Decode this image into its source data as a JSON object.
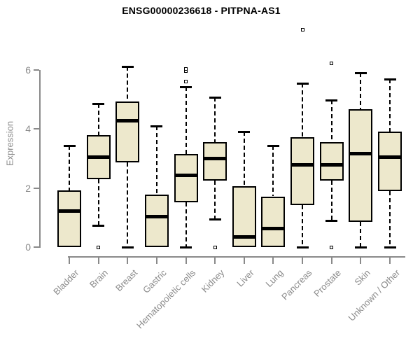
{
  "title": "ENSG00000236618 - PITPNA-AS1",
  "colors": {
    "box_fill": "#EDE8CC",
    "box_border": "#000000",
    "median": "#000000",
    "whisker": "#000000",
    "outlier_fill": "#FFFFFF",
    "axis": "#8A8A8A",
    "axis_text": "#8A8A8A",
    "title_text": "#000000",
    "background": "#FFFFFF"
  },
  "chart_data": {
    "type": "boxplot",
    "title": "ENSG00000236618 - PITPNA-AS1",
    "xlabel": "",
    "ylabel": "Expression",
    "ylim": [
      0,
      6
    ],
    "yticks": [
      0,
      2,
      4,
      6
    ],
    "grid": false,
    "legend": "none",
    "categories": [
      "Bladder",
      "Brain",
      "Breast",
      "Gastric",
      "Hematopoietic cells",
      "Kidney",
      "Liver",
      "Lung",
      "Pancreas",
      "Prostate",
      "Skin",
      "Unknown / Other"
    ],
    "series": [
      {
        "name": "Bladder",
        "whisker_low": 0,
        "q1": 0,
        "median": 1.22,
        "q3": 1.91,
        "whisker_high": 3.43,
        "outliers": []
      },
      {
        "name": "Brain",
        "whisker_low": 0.73,
        "q1": 2.3,
        "median": 3.05,
        "q3": 3.8,
        "whisker_high": 4.87,
        "outliers": [
          0
        ]
      },
      {
        "name": "Breast",
        "whisker_low": 0.01,
        "q1": 2.86,
        "median": 4.29,
        "q3": 4.94,
        "whisker_high": 6.13,
        "outliers": []
      },
      {
        "name": "Gastric",
        "whisker_low": 0,
        "q1": 0,
        "median": 1.03,
        "q3": 1.77,
        "whisker_high": 4.1,
        "outliers": []
      },
      {
        "name": "Hematopoietic cells",
        "whisker_low": 0.01,
        "q1": 1.51,
        "median": 2.43,
        "q3": 3.16,
        "whisker_high": 5.44,
        "outliers": [
          5.6,
          5.96,
          6.04
        ]
      },
      {
        "name": "Kidney",
        "whisker_low": 0.94,
        "q1": 2.26,
        "median": 3.01,
        "q3": 3.57,
        "whisker_high": 5.08,
        "outliers": [
          0
        ]
      },
      {
        "name": "Liver",
        "whisker_low": 0,
        "q1": 0,
        "median": 0.35,
        "q3": 2.06,
        "whisker_high": 3.91,
        "outliers": []
      },
      {
        "name": "Lung",
        "whisker_low": 0,
        "q1": 0,
        "median": 0.62,
        "q3": 1.72,
        "whisker_high": 3.43,
        "outliers": []
      },
      {
        "name": "Pancreas",
        "whisker_low": 0.01,
        "q1": 1.43,
        "median": 2.78,
        "q3": 3.72,
        "whisker_high": 5.54,
        "outliers": [
          7.36
        ]
      },
      {
        "name": "Prostate",
        "whisker_low": 0.9,
        "q1": 2.25,
        "median": 2.78,
        "q3": 3.55,
        "whisker_high": 4.99,
        "outliers": [
          6.22,
          0
        ]
      },
      {
        "name": "Skin",
        "whisker_low": 0.01,
        "q1": 0.85,
        "median": 3.17,
        "q3": 4.67,
        "whisker_high": 5.91,
        "outliers": []
      },
      {
        "name": "Unknown / Other",
        "whisker_low": 0.01,
        "q1": 1.89,
        "median": 3.06,
        "q3": 3.91,
        "whisker_high": 5.7,
        "outliers": []
      }
    ]
  }
}
